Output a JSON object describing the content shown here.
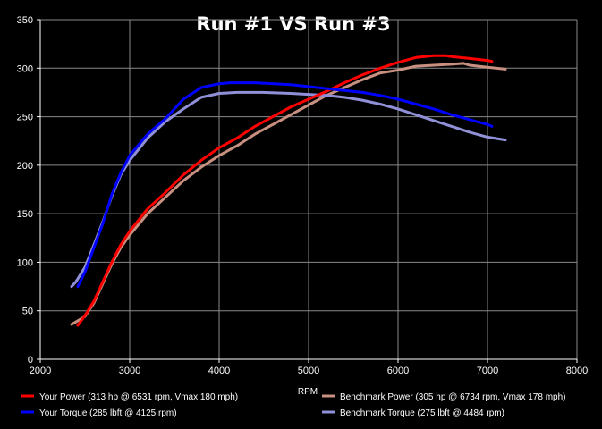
{
  "chart_data": {
    "type": "line",
    "title": "Run #1 VS Run #3",
    "xlabel": "RPM",
    "ylabel": "",
    "xlim": [
      2000,
      8000
    ],
    "ylim": [
      0,
      350
    ],
    "x_ticks": [
      "2000",
      "3000",
      "4000",
      "5000",
      "6000",
      "7000",
      "8000"
    ],
    "y_ticks": [
      "0",
      "50",
      "100",
      "150",
      "200",
      "250",
      "300",
      "350"
    ],
    "grid": true,
    "legend_position": "bottom",
    "series": [
      {
        "name": "Your Power (313 hp @ 6531 rpm, Vmax 180 mph)",
        "color": "#ff0000",
        "x": [
          2420,
          2500,
          2600,
          2700,
          2800,
          2900,
          3000,
          3200,
          3400,
          3600,
          3800,
          4000,
          4200,
          4400,
          4600,
          4800,
          5000,
          5200,
          5400,
          5600,
          5800,
          6000,
          6200,
          6400,
          6531,
          6600,
          6800,
          7000,
          7050
        ],
        "values": [
          35,
          45,
          60,
          80,
          100,
          118,
          132,
          155,
          172,
          190,
          205,
          218,
          228,
          240,
          250,
          260,
          268,
          276,
          285,
          293,
          300,
          306,
          311,
          313,
          313,
          312,
          310,
          308,
          307
        ]
      },
      {
        "name": "Your Torque (285 lbft @ 4125 rpm)",
        "color": "#0000ff",
        "x": [
          2420,
          2500,
          2600,
          2700,
          2800,
          2900,
          3000,
          3200,
          3400,
          3600,
          3800,
          4000,
          4125,
          4400,
          4800,
          5000,
          5200,
          5400,
          5600,
          5800,
          6000,
          6200,
          6400,
          6600,
          6800,
          7000,
          7050
        ],
        "values": [
          75,
          90,
          115,
          140,
          170,
          192,
          210,
          232,
          248,
          268,
          280,
          284,
          285,
          285,
          283,
          281,
          279,
          277,
          275,
          272,
          268,
          263,
          258,
          252,
          247,
          242,
          240
        ]
      },
      {
        "name": "Benchmark Power (305 hp @ 6734 rpm, Vmax 178 mph)",
        "color": "#c89080",
        "x": [
          2350,
          2500,
          2600,
          2700,
          2800,
          2900,
          3000,
          3200,
          3400,
          3600,
          3800,
          4000,
          4200,
          4400,
          4600,
          4800,
          5000,
          5200,
          5400,
          5600,
          5800,
          6000,
          6200,
          6400,
          6600,
          6734,
          6800,
          7000,
          7200
        ],
        "values": [
          36,
          44,
          58,
          78,
          98,
          115,
          128,
          150,
          167,
          184,
          198,
          210,
          220,
          232,
          242,
          252,
          262,
          272,
          280,
          288,
          295,
          298,
          302,
          303,
          304,
          305,
          303,
          301,
          299
        ]
      },
      {
        "name": "Benchmark Torque (275 lbft @ 4484 rpm)",
        "color": "#9090d8",
        "x": [
          2350,
          2400,
          2500,
          2600,
          2700,
          2800,
          2900,
          3000,
          3200,
          3400,
          3600,
          3800,
          4000,
          4200,
          4484,
          4800,
          5000,
          5200,
          5400,
          5600,
          5800,
          6000,
          6200,
          6400,
          6600,
          6800,
          7000,
          7200
        ],
        "values": [
          75,
          80,
          95,
          118,
          142,
          168,
          190,
          205,
          228,
          245,
          258,
          270,
          274,
          275,
          275,
          274,
          273,
          272,
          270,
          267,
          263,
          258,
          252,
          246,
          240,
          234,
          229,
          226
        ]
      }
    ]
  }
}
